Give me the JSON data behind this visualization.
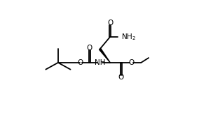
{
  "bg_color": "#ffffff",
  "line_color": "#000000",
  "line_width": 1.3,
  "figsize": [
    2.84,
    1.78
  ],
  "dpi": 100,
  "xlim": [
    0,
    10
  ],
  "ylim": [
    0,
    7
  ],
  "text_fs": 7.5
}
